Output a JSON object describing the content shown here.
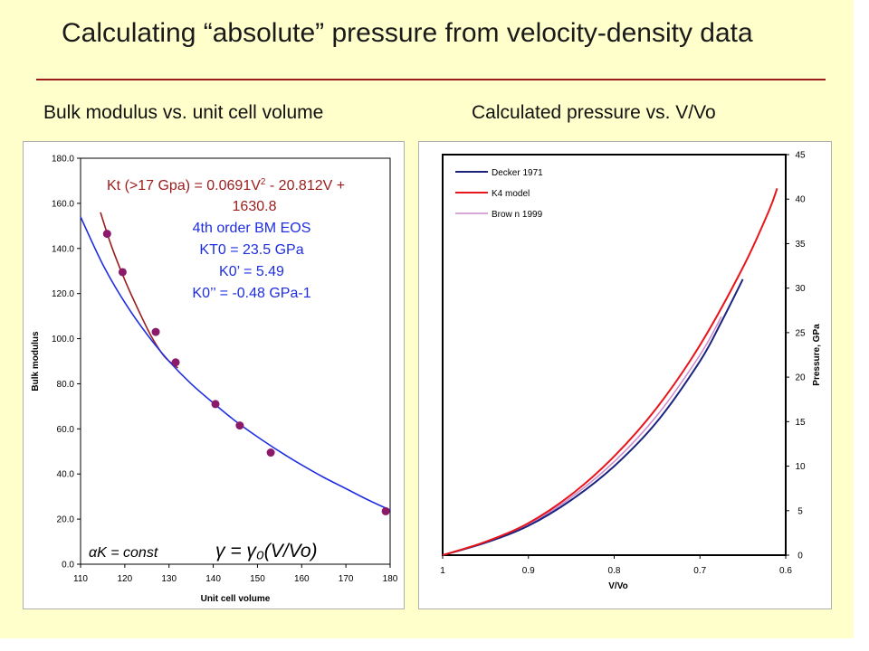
{
  "slide": {
    "title": "Calculating “absolute” pressure from velocity-density data",
    "left_subtitle": "Bulk modulus vs. unit cell volume",
    "right_subtitle": "Calculated pressure vs. V/Vo",
    "colors": {
      "background": "#ffffcc",
      "rule": "#9b1c1c"
    }
  },
  "chart_data": [
    {
      "type": "scatter",
      "xlabel": "Unit cell volume",
      "ylabel": "Bulk modulus",
      "xlim": [
        110,
        180
      ],
      "ylim": [
        0,
        180
      ],
      "x_ticks": [
        "110",
        "120",
        "130",
        "140",
        "150",
        "160",
        "170",
        "180"
      ],
      "y_ticks": [
        "0.0",
        "20.0",
        "40.0",
        "60.0",
        "80.0",
        "100.0",
        "120.0",
        "140.0",
        "160.0",
        "180.0"
      ],
      "grid": false,
      "points": {
        "x": [
          116,
          119.5,
          127,
          131.5,
          140.5,
          146,
          153,
          179
        ],
        "y": [
          146.5,
          129.5,
          103,
          89.5,
          71,
          61.5,
          49.5,
          23.5
        ],
        "color": "#8b1a6b"
      },
      "series": [
        {
          "name": "Kt (>17 Gpa) = 0.0691V² - 20.812V + 1630.8",
          "color": "#9b1c1c",
          "x": [
            114.5,
            117,
            120,
            123,
            126,
            129,
            132
          ],
          "y": [
            156,
            141,
            126,
            113,
            101,
            92,
            87
          ]
        },
        {
          "name": "4th order BM EOS",
          "color": "#1f2ee0",
          "x": [
            110,
            115,
            120,
            125,
            130,
            135,
            140,
            145,
            150,
            155,
            160,
            165,
            170,
            175,
            180
          ],
          "y": [
            154,
            133,
            116,
            102,
            90,
            80,
            71.5,
            63.5,
            56.5,
            50,
            44,
            38.5,
            33.5,
            28.5,
            24
          ]
        }
      ],
      "annotations": {
        "kt_line1": "Kt (>17 Gpa) = 0.0691V",
        "kt_sup": "2",
        "kt_line1b": " - 20.812V +",
        "kt_line2": "1630.8",
        "bm_line1": "4th order BM EOS",
        "bm_line2": "KT0 = 23.5 GPa",
        "bm_line3": "K0’ = 5.49",
        "bm_line4": "K0’’ = -0.48 GPa-1",
        "eq_left": "αK = const",
        "eq_right": "γ = γ₀(V/Vo)"
      }
    },
    {
      "type": "line",
      "xlabel": "V/Vo",
      "ylabel": "Pressure, GPa",
      "xlim": [
        1,
        0.6
      ],
      "ylim": [
        0,
        45
      ],
      "x_ticks": [
        "1",
        "0.9",
        "0.8",
        "0.7",
        "0.6"
      ],
      "y_ticks": [
        "0",
        "5",
        "10",
        "15",
        "20",
        "25",
        "30",
        "35",
        "40",
        "45"
      ],
      "grid": false,
      "legend": "top-left",
      "series": [
        {
          "name": "Decker 1971",
          "color": "#1a237e",
          "x": [
            1,
            0.95,
            0.9,
            0.85,
            0.8,
            0.75,
            0.7,
            0.675,
            0.65
          ],
          "y": [
            0,
            1.4,
            3.3,
            6.2,
            10,
            15,
            21.8,
            26.2,
            31
          ]
        },
        {
          "name": "K4 model",
          "color": "#e8151b",
          "x": [
            1,
            0.95,
            0.9,
            0.85,
            0.8,
            0.75,
            0.7,
            0.65,
            0.62,
            0.61
          ],
          "y": [
            0,
            1.5,
            3.6,
            6.8,
            11.1,
            16.6,
            23.6,
            32.3,
            38.6,
            41.2
          ]
        },
        {
          "name": "Brow n 1999",
          "color": "#cc88cc",
          "x": [
            1,
            0.95,
            0.9,
            0.85,
            0.8,
            0.75,
            0.7,
            0.675
          ],
          "y": [
            0,
            1.45,
            3.45,
            6.5,
            10.5,
            15.7,
            22.5,
            26.8
          ]
        }
      ]
    }
  ]
}
